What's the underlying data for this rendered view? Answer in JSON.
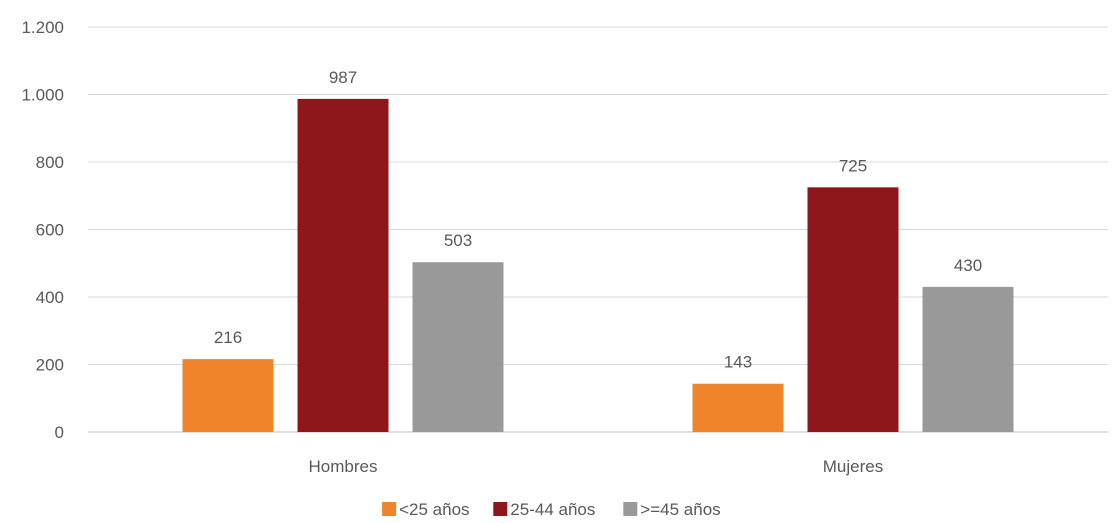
{
  "chart_data": {
    "type": "bar",
    "title": "",
    "xlabel": "",
    "ylabel": "",
    "categories": [
      "Hombres",
      "Mujeres"
    ],
    "series": [
      {
        "name": "<25 años",
        "color": "#F0842A",
        "values": [
          216,
          143
        ]
      },
      {
        "name": "25-44 años",
        "color": "#8E171C",
        "values": [
          987,
          725
        ]
      },
      {
        "name": ">=45 años",
        "color": "#999999",
        "values": [
          503,
          430
        ]
      }
    ],
    "ylim": [
      0,
      1200
    ],
    "yticks": [
      0,
      200,
      400,
      600,
      800,
      1000,
      1200
    ],
    "ytick_labels": [
      "0",
      "200",
      "400",
      "600",
      "800",
      "1.000",
      "1.200"
    ],
    "data_labels": true,
    "grid": true,
    "legend_position": "bottom"
  }
}
